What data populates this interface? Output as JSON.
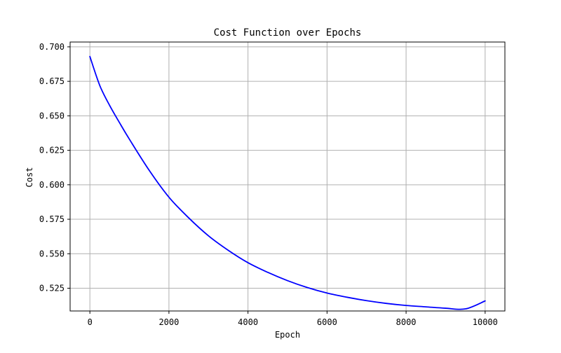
{
  "chart_data": {
    "type": "line",
    "title": "Cost Function over Epochs",
    "xlabel": "Epoch",
    "ylabel": "Cost",
    "xlim": [
      -500,
      10500
    ],
    "ylim": [
      0.5085,
      0.7035
    ],
    "xticks": [
      0,
      2000,
      4000,
      6000,
      8000,
      10000
    ],
    "xtick_labels": [
      "0",
      "2000",
      "4000",
      "6000",
      "8000",
      "10000"
    ],
    "yticks": [
      0.525,
      0.55,
      0.575,
      0.6,
      0.625,
      0.65,
      0.675,
      0.7
    ],
    "ytick_labels": [
      "0.525",
      "0.550",
      "0.575",
      "0.600",
      "0.625",
      "0.650",
      "0.675",
      "0.700"
    ],
    "grid": true,
    "series": [
      {
        "color": "#0000ff",
        "x": [
          0,
          250,
          500,
          750,
          1000,
          1500,
          2000,
          2500,
          3000,
          3500,
          4000,
          4500,
          5000,
          5500,
          6000,
          6500,
          7000,
          7500,
          8000,
          8500,
          9000,
          9500,
          10000
        ],
        "y": [
          0.693,
          0.672,
          0.6575,
          0.645,
          0.633,
          0.6105,
          0.591,
          0.576,
          0.563,
          0.5525,
          0.5435,
          0.5365,
          0.5305,
          0.5255,
          0.5215,
          0.5185,
          0.516,
          0.514,
          0.5125,
          0.5115,
          0.5105,
          0.51,
          0.5158
        ]
      }
    ]
  }
}
